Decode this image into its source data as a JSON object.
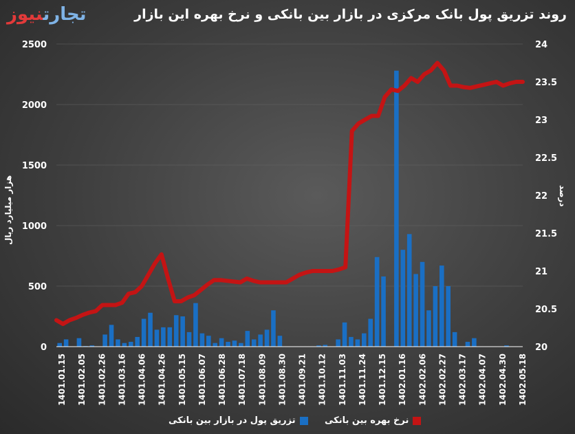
{
  "title": "روند تزریق پول بانک مرکزی در بازار بین بانکی و نرخ بهره این بازار",
  "logo": {
    "part1": "تجارت",
    "part2": "نیوز"
  },
  "colors": {
    "bar": "#1a6fc4",
    "line": "#c41414",
    "axis": "#ffffff",
    "grid": "#666666"
  },
  "chart_data": {
    "type": "bar+line",
    "ylabel": "هزار میلیارد ریال",
    "y2label": "درصد",
    "ylim": [
      0,
      2500
    ],
    "y2lim": [
      20,
      24
    ],
    "yticks": [
      "0",
      "500",
      "1000",
      "1500",
      "2000",
      "2500"
    ],
    "y2ticks": [
      "20",
      "20.5",
      "21",
      "21.5",
      "22",
      "22.5",
      "23",
      "23.5",
      "24"
    ],
    "xtick_labels": [
      "1401.01.15",
      "1401.02.05",
      "1401.02.26",
      "1401.03.16",
      "1401.04.06",
      "1401.04.26",
      "1401.05.15",
      "1401.06.07",
      "1401.06.28",
      "1401.07.18",
      "1401.08.09",
      "1401.08.30",
      "1401.09.21",
      "1401.10.12",
      "1401.11.03",
      "1401.11.24",
      "1401.12.15",
      "1402.01.16",
      "1402.02.06",
      "1402.02.27",
      "1402.03.17",
      "1402.04.07",
      "1402.04.30",
      "1402.05.18"
    ],
    "legend": [
      "تزریق پول در بازار بین بانکی",
      "نرخ بهره بین بانکی"
    ],
    "series": [
      {
        "name": "تزریق پول در بازار بین بانکی",
        "type": "bar",
        "values": [
          30,
          60,
          0,
          70,
          5,
          10,
          0,
          100,
          180,
          60,
          30,
          40,
          80,
          230,
          280,
          140,
          160,
          160,
          260,
          250,
          120,
          360,
          110,
          90,
          30,
          70,
          40,
          50,
          30,
          130,
          60,
          100,
          140,
          300,
          90,
          0,
          0,
          0,
          0,
          0,
          10,
          15,
          0,
          60,
          200,
          80,
          60,
          110,
          230,
          740,
          580,
          0,
          2280,
          800,
          930,
          600,
          700,
          300,
          500,
          670,
          500,
          120,
          0,
          40,
          70,
          0,
          0,
          0,
          0,
          10,
          0,
          0
        ]
      },
      {
        "name": "نرخ بهره بین بانکی",
        "type": "line",
        "values": [
          20.35,
          20.3,
          20.35,
          20.38,
          20.42,
          20.45,
          20.47,
          20.55,
          20.55,
          20.55,
          20.58,
          20.7,
          20.72,
          20.8,
          20.95,
          21.1,
          21.22,
          20.9,
          20.6,
          20.6,
          20.65,
          20.68,
          20.75,
          20.82,
          20.88,
          20.88,
          20.87,
          20.86,
          20.85,
          20.9,
          20.87,
          20.85,
          20.85,
          20.85,
          20.85,
          20.85,
          20.9,
          20.95,
          20.98,
          21,
          21,
          21,
          21,
          21.02,
          21.05,
          22.85,
          22.95,
          23.0,
          23.05,
          23.05,
          23.3,
          23.4,
          23.38,
          23.45,
          23.55,
          23.5,
          23.6,
          23.65,
          23.75,
          23.65,
          23.45,
          23.45,
          23.43,
          23.42,
          23.44,
          23.46,
          23.48,
          23.5,
          23.45,
          23.48,
          23.5,
          23.5
        ]
      }
    ]
  }
}
